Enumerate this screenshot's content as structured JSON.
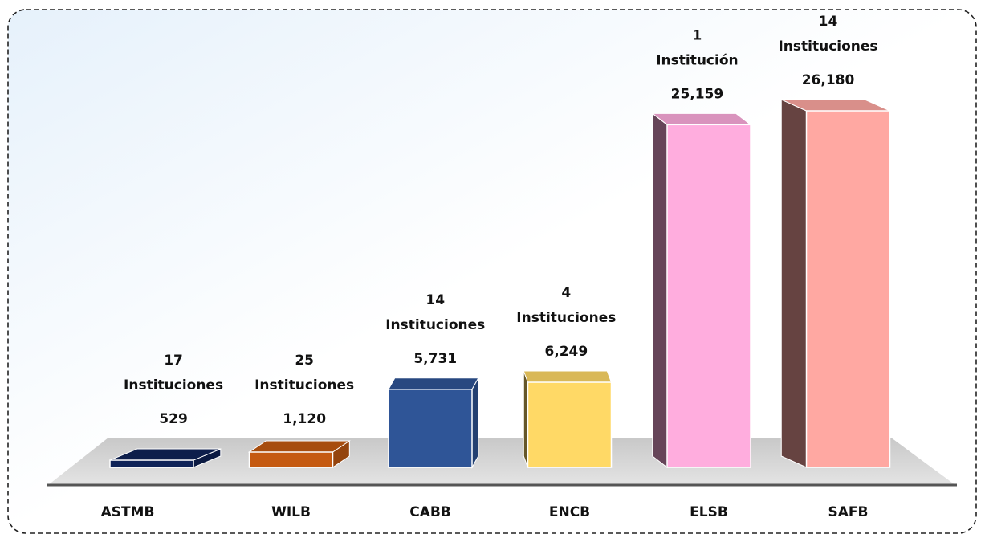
{
  "chart_data": {
    "type": "bar3d",
    "categories": [
      "ASTMB",
      "WILB",
      "CABB",
      "ENCB",
      "ELSB",
      "SAFB"
    ],
    "values": [
      529,
      1120,
      5731,
      6249,
      25159,
      26180
    ],
    "value_labels": [
      "529",
      "1,120",
      "5,731",
      "6,249",
      "25,159",
      "26,180"
    ],
    "annotations": [
      {
        "count": 17,
        "label": "Instituciones"
      },
      {
        "count": 25,
        "label": "Instituciones"
      },
      {
        "count": 14,
        "label": "Instituciones"
      },
      {
        "count": 4,
        "label": "Instituciones"
      },
      {
        "count": 1,
        "label": "Institución"
      },
      {
        "count": 14,
        "label": "Instituciones"
      }
    ],
    "colors": [
      "#0f2358",
      "#c55a11",
      "#2f5597",
      "#ffd966",
      "#ffadde",
      "#ffa8a2"
    ]
  }
}
